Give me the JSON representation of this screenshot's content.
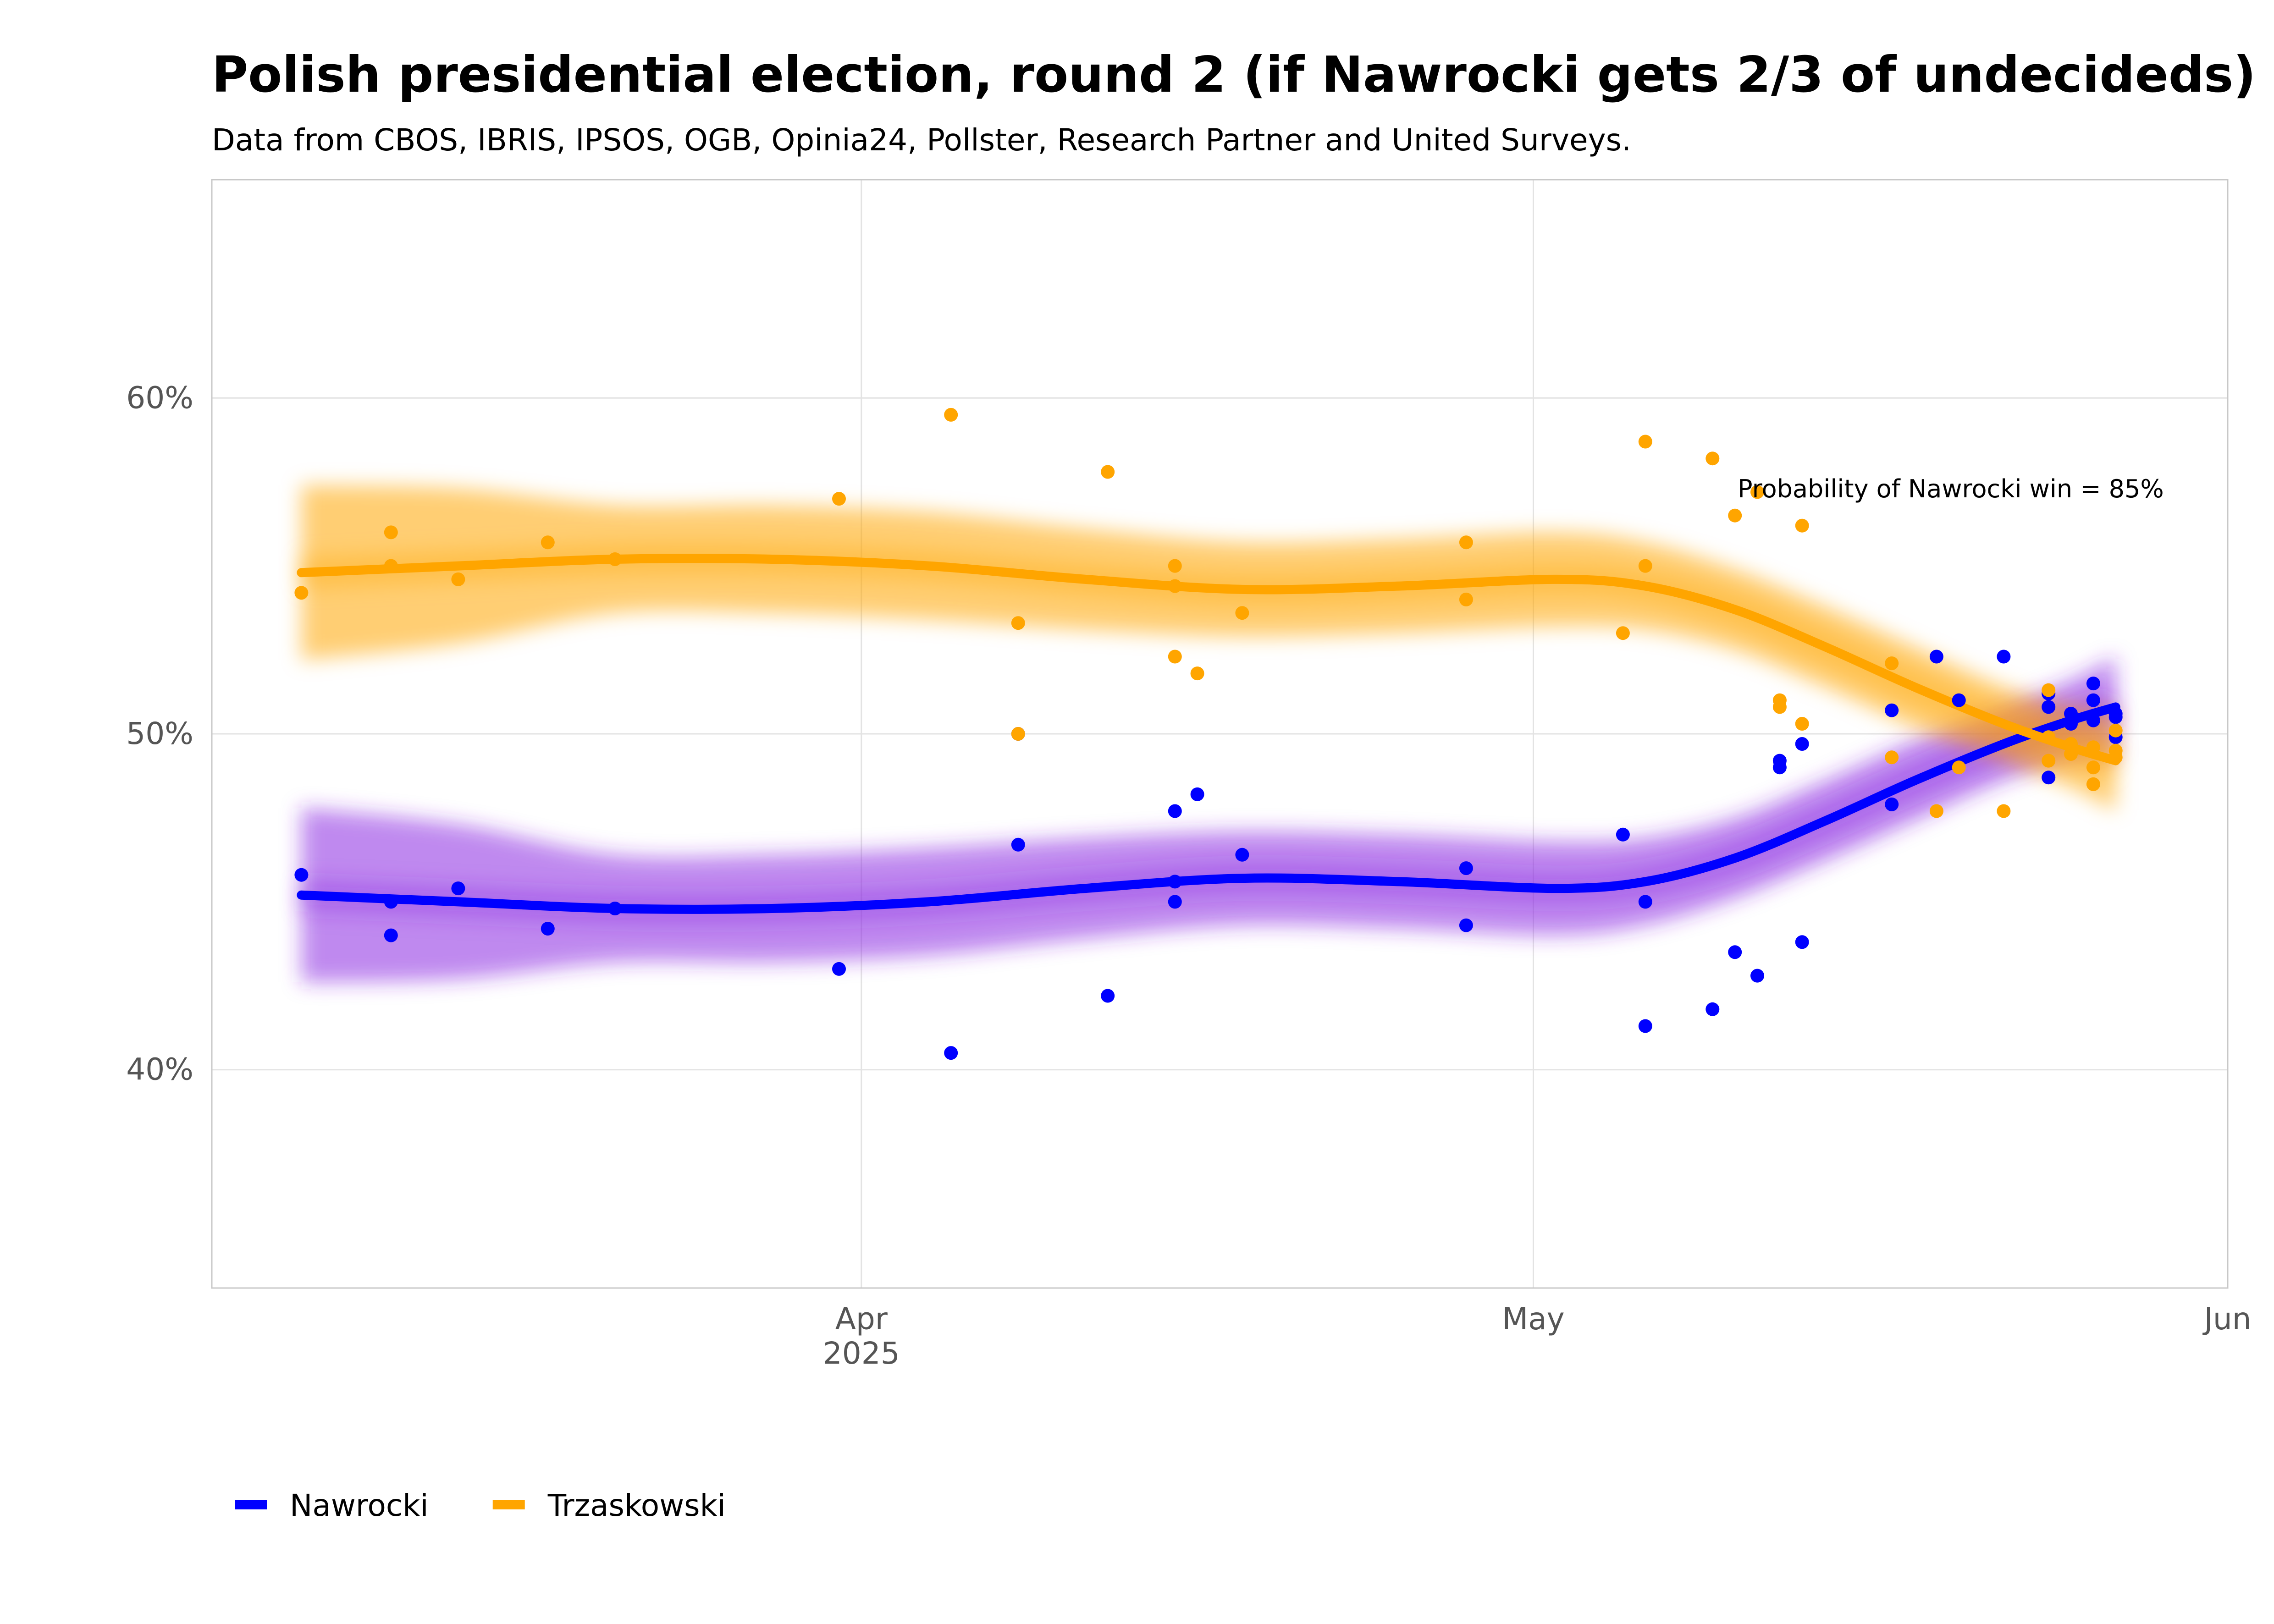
{
  "title": "Polish presidential election, round 2 (if Nawrocki gets 2/3 of undecideds)",
  "subtitle": "Data from CBOS, IBRIS, IPSOS, OGB, Opinia24, Pollster, Research Partner and United Surveys.",
  "annotation": "Probability of Nawrocki win = 85%",
  "chart_data": {
    "type": "scatter",
    "x_axis": {
      "type": "date",
      "range": [
        "2025-03-03",
        "2025-06-01"
      ],
      "ticks": [
        {
          "date": "2025-04-01",
          "label": "Apr",
          "sublabel": "2025"
        },
        {
          "date": "2025-05-01",
          "label": "May",
          "sublabel": ""
        },
        {
          "date": "2025-06-01",
          "label": "Jun",
          "sublabel": ""
        }
      ]
    },
    "y_axis": {
      "range": [
        33.5,
        66.5
      ],
      "ticks": [
        {
          "value": 40,
          "label": "40%"
        },
        {
          "value": 50,
          "label": "50%"
        },
        {
          "value": 60,
          "label": "60%"
        }
      ]
    },
    "grid": true,
    "legend_position": "bottom-left",
    "series": [
      {
        "name": "Nawrocki",
        "color": "#0000ff",
        "band_color": "#8a2be2",
        "points": [
          [
            "2025-03-07",
            45.8
          ],
          [
            "2025-03-11",
            45.0
          ],
          [
            "2025-03-11",
            44.0
          ],
          [
            "2025-03-14",
            45.4
          ],
          [
            "2025-03-18",
            44.2
          ],
          [
            "2025-03-21",
            44.8
          ],
          [
            "2025-03-31",
            43.0
          ],
          [
            "2025-04-05",
            40.5
          ],
          [
            "2025-04-08",
            46.7
          ],
          [
            "2025-04-08",
            50.0
          ],
          [
            "2025-04-12",
            42.2
          ],
          [
            "2025-04-15",
            47.7
          ],
          [
            "2025-04-15",
            45.6
          ],
          [
            "2025-04-15",
            45.0
          ],
          [
            "2025-04-16",
            48.2
          ],
          [
            "2025-04-18",
            46.4
          ],
          [
            "2025-04-28",
            46.0
          ],
          [
            "2025-04-28",
            44.3
          ],
          [
            "2025-05-05",
            47.0
          ],
          [
            "2025-05-06",
            45.0
          ],
          [
            "2025-05-06",
            41.3
          ],
          [
            "2025-05-09",
            41.8
          ],
          [
            "2025-05-10",
            43.5
          ],
          [
            "2025-05-11",
            42.8
          ],
          [
            "2025-05-12",
            49.2
          ],
          [
            "2025-05-12",
            49.0
          ],
          [
            "2025-05-13",
            49.7
          ],
          [
            "2025-05-13",
            43.8
          ],
          [
            "2025-05-17",
            50.7
          ],
          [
            "2025-05-17",
            47.9
          ],
          [
            "2025-05-19",
            52.3
          ],
          [
            "2025-05-20",
            51.0
          ],
          [
            "2025-05-22",
            52.3
          ],
          [
            "2025-05-24",
            51.2
          ],
          [
            "2025-05-24",
            50.8
          ],
          [
            "2025-05-24",
            48.7
          ],
          [
            "2025-05-25",
            50.6
          ],
          [
            "2025-05-25",
            50.3
          ],
          [
            "2025-05-26",
            51.5
          ],
          [
            "2025-05-26",
            51.0
          ],
          [
            "2025-05-26",
            50.4
          ],
          [
            "2025-05-27",
            50.6
          ],
          [
            "2025-05-27",
            50.5
          ],
          [
            "2025-05-27",
            49.9
          ]
        ],
        "trend": [
          [
            "2025-03-07",
            45.2
          ],
          [
            "2025-03-14",
            45.0
          ],
          [
            "2025-03-21",
            44.8
          ],
          [
            "2025-03-28",
            44.8
          ],
          [
            "2025-04-04",
            45.0
          ],
          [
            "2025-04-11",
            45.4
          ],
          [
            "2025-04-18",
            45.7
          ],
          [
            "2025-04-25",
            45.6
          ],
          [
            "2025-05-02",
            45.4
          ],
          [
            "2025-05-06",
            45.6
          ],
          [
            "2025-05-10",
            46.3
          ],
          [
            "2025-05-14",
            47.4
          ],
          [
            "2025-05-18",
            48.6
          ],
          [
            "2025-05-22",
            49.7
          ],
          [
            "2025-05-25",
            50.4
          ],
          [
            "2025-05-27",
            50.8
          ]
        ],
        "band_halfwidth": [
          2.6,
          2.3,
          1.6,
          1.6,
          1.6,
          1.5,
          1.4,
          1.4,
          1.4,
          1.3,
          1.2,
          1.2,
          1.2,
          1.1,
          1.2,
          1.5
        ]
      },
      {
        "name": "Trzaskowski",
        "color": "#ffa500",
        "band_color": "#ffa500",
        "points": [
          [
            "2025-03-07",
            54.2
          ],
          [
            "2025-03-11",
            56.0
          ],
          [
            "2025-03-11",
            55.0
          ],
          [
            "2025-03-14",
            54.6
          ],
          [
            "2025-03-18",
            55.7
          ],
          [
            "2025-03-21",
            55.2
          ],
          [
            "2025-03-31",
            57.0
          ],
          [
            "2025-04-05",
            59.5
          ],
          [
            "2025-04-08",
            53.3
          ],
          [
            "2025-04-08",
            50.0
          ],
          [
            "2025-04-12",
            57.8
          ],
          [
            "2025-04-15",
            55.0
          ],
          [
            "2025-04-15",
            54.4
          ],
          [
            "2025-04-15",
            52.3
          ],
          [
            "2025-04-16",
            51.8
          ],
          [
            "2025-04-18",
            53.6
          ],
          [
            "2025-04-28",
            55.7
          ],
          [
            "2025-04-28",
            54.0
          ],
          [
            "2025-05-05",
            53.0
          ],
          [
            "2025-05-06",
            58.7
          ],
          [
            "2025-05-06",
            55.0
          ],
          [
            "2025-05-09",
            58.2
          ],
          [
            "2025-05-10",
            56.5
          ],
          [
            "2025-05-11",
            57.2
          ],
          [
            "2025-05-12",
            51.0
          ],
          [
            "2025-05-12",
            50.8
          ],
          [
            "2025-05-13",
            56.2
          ],
          [
            "2025-05-13",
            50.3
          ],
          [
            "2025-05-17",
            52.1
          ],
          [
            "2025-05-17",
            49.3
          ],
          [
            "2025-05-19",
            47.7
          ],
          [
            "2025-05-20",
            49.0
          ],
          [
            "2025-05-22",
            47.7
          ],
          [
            "2025-05-24",
            51.3
          ],
          [
            "2025-05-24",
            49.9
          ],
          [
            "2025-05-24",
            49.2
          ],
          [
            "2025-05-25",
            49.7
          ],
          [
            "2025-05-25",
            49.4
          ],
          [
            "2025-05-26",
            49.6
          ],
          [
            "2025-05-26",
            49.0
          ],
          [
            "2025-05-26",
            48.5
          ],
          [
            "2025-05-27",
            50.1
          ],
          [
            "2025-05-27",
            49.5
          ],
          [
            "2025-05-27",
            49.3
          ]
        ],
        "trend": [
          [
            "2025-03-07",
            54.8
          ],
          [
            "2025-03-14",
            55.0
          ],
          [
            "2025-03-21",
            55.2
          ],
          [
            "2025-03-28",
            55.2
          ],
          [
            "2025-04-04",
            55.0
          ],
          [
            "2025-04-11",
            54.6
          ],
          [
            "2025-04-18",
            54.3
          ],
          [
            "2025-04-25",
            54.4
          ],
          [
            "2025-05-02",
            54.6
          ],
          [
            "2025-05-06",
            54.4
          ],
          [
            "2025-05-10",
            53.7
          ],
          [
            "2025-05-14",
            52.6
          ],
          [
            "2025-05-18",
            51.4
          ],
          [
            "2025-05-22",
            50.3
          ],
          [
            "2025-05-25",
            49.6
          ],
          [
            "2025-05-27",
            49.2
          ]
        ],
        "band_halfwidth": [
          2.6,
          2.3,
          1.6,
          1.6,
          1.6,
          1.5,
          1.4,
          1.4,
          1.4,
          1.3,
          1.2,
          1.2,
          1.2,
          1.1,
          1.2,
          1.5
        ]
      }
    ]
  }
}
